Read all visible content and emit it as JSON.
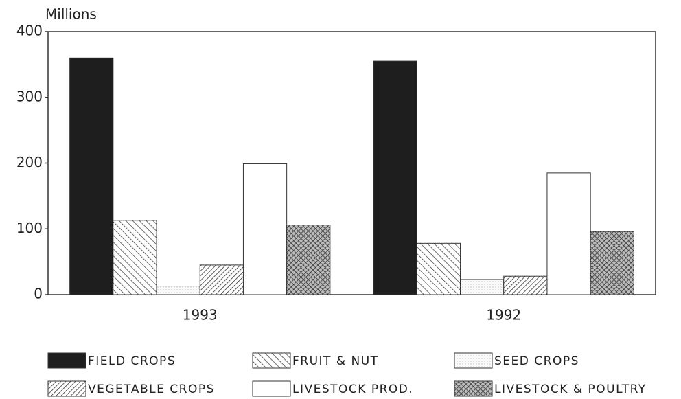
{
  "chart_data": {
    "type": "bar",
    "y_label": "Millions",
    "categories": [
      "1993",
      "1992"
    ],
    "series": [
      {
        "name": "FIELD CROPS",
        "color": "#1e1e1e",
        "fill": "solid",
        "values": [
          360,
          355
        ]
      },
      {
        "name": "FRUIT & NUT",
        "color": "#333333",
        "fill": "backslash",
        "values": [
          113,
          78
        ]
      },
      {
        "name": "SEED CROPS",
        "color": "#9a9a9a",
        "fill": "dots",
        "values": [
          13,
          23
        ]
      },
      {
        "name": "VEGETABLE CROPS",
        "color": "#333333",
        "fill": "slash",
        "values": [
          45,
          28
        ]
      },
      {
        "name": "LIVESTOCK PROD.",
        "color": "#ffffff",
        "fill": "solid",
        "values": [
          199,
          185
        ]
      },
      {
        "name": "LIVESTOCK & POULTRY",
        "color": "#333333",
        "fill": "cross",
        "values": [
          106,
          96
        ]
      }
    ],
    "ylim": [
      0,
      400
    ],
    "yticks": [
      0,
      100,
      200,
      300,
      400
    ],
    "grid": false,
    "legend": "bottom"
  }
}
